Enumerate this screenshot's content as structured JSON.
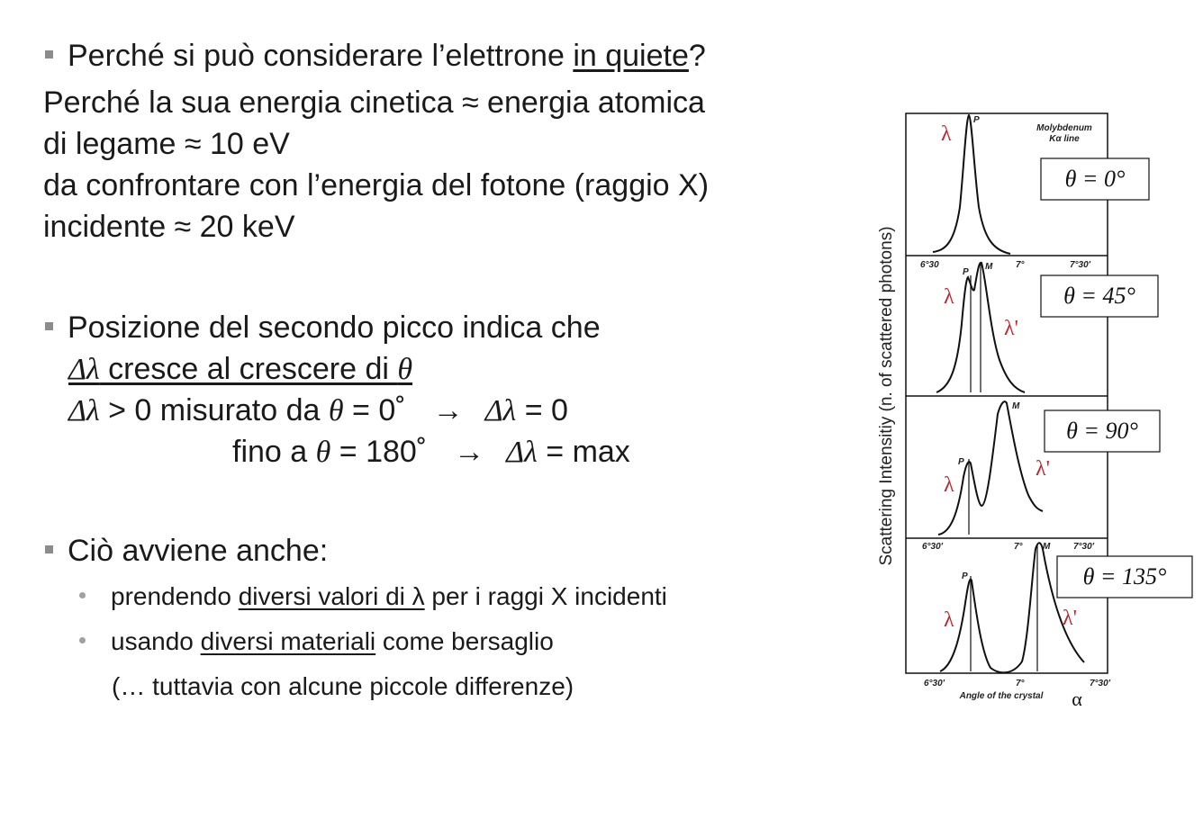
{
  "bullet1": {
    "prefix": "Perché si può considerare l’elettrone ",
    "underlined": "in quiete",
    "suffix": "?"
  },
  "answer_lines": [
    "Perché la sua energia cinetica ≈ energia atomica",
    "di legame ≈ 10 eV",
    "da confrontare con l’energia del fotone (raggio X)",
    "incidente ≈ 20 keV"
  ],
  "bullet2": {
    "text": "Posizione del secondo picco indica che",
    "line2": {
      "dl": "Δλ",
      "rest": " cresce al crescere di ",
      "theta": "θ"
    },
    "line3": {
      "dl": "Δλ",
      "mid": " > 0 misurato da ",
      "theta": "θ",
      "eq": " = 0˚",
      "arrow": "→",
      "dl2": "Δλ",
      "res": " = 0"
    },
    "line4": {
      "pre": "fino a ",
      "theta": "θ",
      "eq": " = 180˚",
      "arrow": "→",
      "dl2": "Δλ",
      "res": " = max"
    }
  },
  "bullet3": {
    "text": "Ciò avviene anche:",
    "sub1": {
      "pre": "prendendo ",
      "u": "diversi valori di λ",
      "post": " per i raggi X incidenti"
    },
    "sub2": {
      "pre": "usando ",
      "u": "diversi materiali",
      "post": " come bersaglio"
    },
    "sub3": "(… tuttavia con alcune piccole differenze)"
  },
  "figure": {
    "ylabel": "Scattering Intensitiy (n. of scattered photons)",
    "xlabel": "Angle of the crystal",
    "alpha": "α",
    "header_line1": "Molybdenum",
    "header_line2": "Kα line",
    "panels": [
      {
        "theta": "θ = 0°"
      },
      {
        "theta": "θ = 45°"
      },
      {
        "theta": "θ = 90°"
      },
      {
        "theta": "θ = 135°"
      }
    ],
    "ticks": {
      "left": "6°30",
      "left2": "6°30'",
      "mid": "7°",
      "right": "7°30'"
    },
    "labels": {
      "lambda": "λ",
      "lambda_prime": "λ'",
      "P": "P",
      "M": "M"
    }
  }
}
